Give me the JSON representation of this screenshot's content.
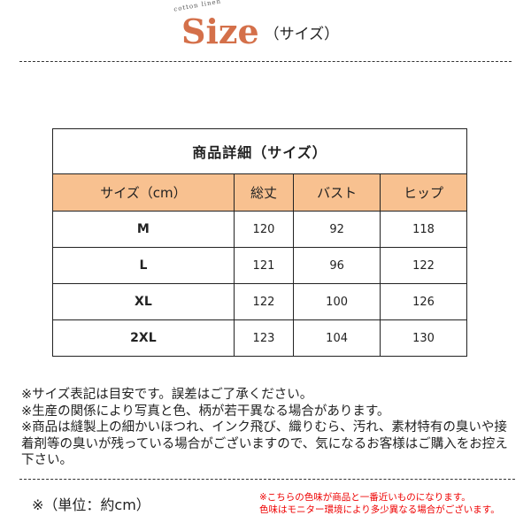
{
  "header": {
    "logo_sub": "cotton linen",
    "logo": "Size",
    "subtitle": "（サイズ）"
  },
  "table": {
    "title": "商品詳細（サイズ）",
    "columns": [
      "サイズ（cm）",
      "総丈",
      "バスト",
      "ヒップ"
    ],
    "rows": [
      [
        "M",
        "120",
        "92",
        "118"
      ],
      [
        "L",
        "121",
        "96",
        "122"
      ],
      [
        "XL",
        "122",
        "100",
        "126"
      ],
      [
        "2XL",
        "123",
        "104",
        "130"
      ]
    ],
    "header_color": "#f8c190"
  },
  "notes": [
    "※サイズ表記は目安です。誤差はご了承ください。",
    "※生産の関係により写真と色、柄が若干異なる場合があります。",
    "※商品は縫製上の細かいほつれ、インク飛び、織りむら、汚れ、素材特有の臭いや接着剤等の臭いが残っている場合がございますので、気になるお客様はご購入をお控え下さい。"
  ],
  "unit": "※（単位：約cm）",
  "color_notes": [
    "※こちらの色味が商品と一番近いものになります。",
    "色味はモニター環境により多少異なる場合がございます。"
  ]
}
